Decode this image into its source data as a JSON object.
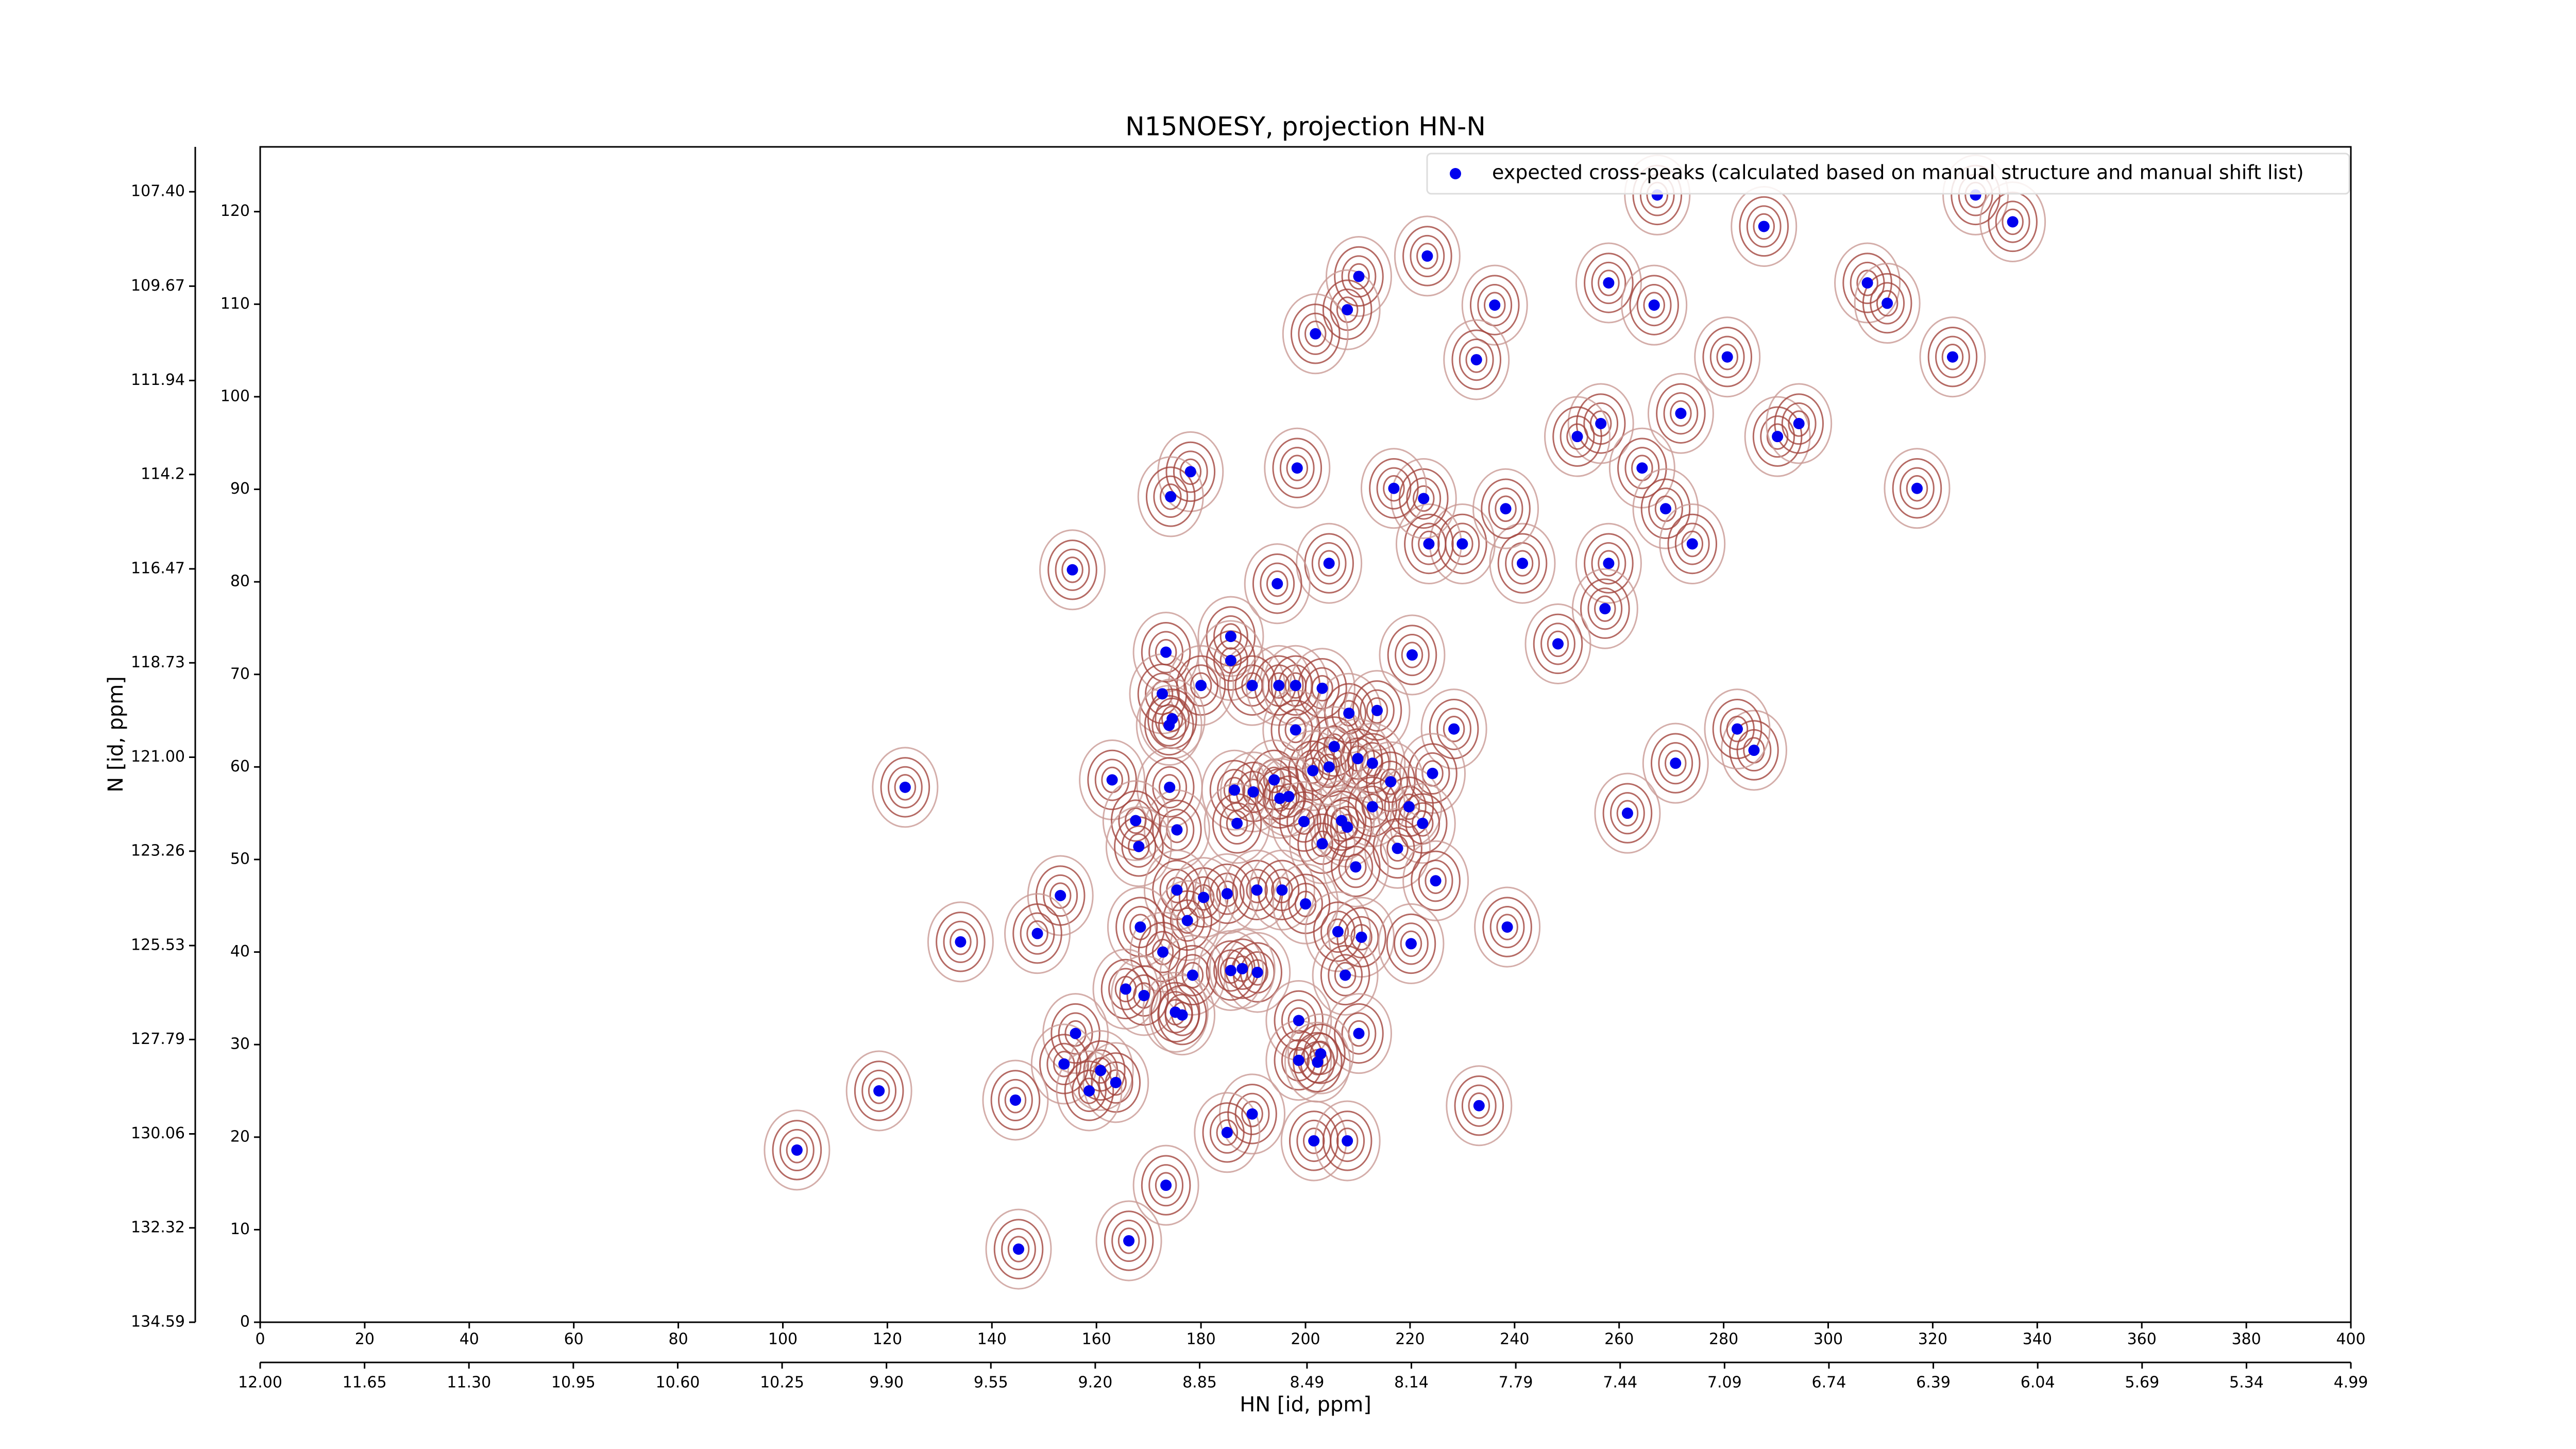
{
  "chart_data": {
    "type": "scatter",
    "title": "N15NOESY, projection HN-N",
    "x_label": "HN [id, ppm]",
    "y_label": "N [id, ppm]",
    "legend": "upper right",
    "xlim": [
      0,
      400
    ],
    "xticks": [
      0,
      20,
      40,
      60,
      80,
      100,
      120,
      140,
      160,
      180,
      200,
      220,
      240,
      260,
      280,
      300,
      320,
      340,
      360,
      380,
      400
    ],
    "x2lim": [
      12.0,
      4.99
    ],
    "x2ticks": [
      {
        "value": 12.0,
        "label": "12.00"
      },
      11.65,
      {
        "value": 11.3,
        "label": "11.30"
      },
      10.95,
      {
        "value": 10.6,
        "label": "10.60"
      },
      10.25,
      {
        "value": 9.9,
        "label": "9.90"
      },
      9.55,
      {
        "value": 9.2,
        "label": "9.20"
      },
      8.85,
      8.49,
      8.14,
      7.79,
      7.44,
      7.09,
      6.74,
      6.39,
      6.04,
      5.69,
      5.34,
      4.99
    ],
    "ylim": [
      0,
      127
    ],
    "yticks": [
      0,
      10,
      20,
      30,
      40,
      50,
      60,
      70,
      80,
      90,
      100,
      110,
      120
    ],
    "y2lim": [
      134.59,
      106.32
    ],
    "y2ticks": [
      134.59,
      132.32,
      130.06,
      127.79,
      125.53,
      123.26,
      {
        "value": 121.0,
        "label": "121.00"
      },
      118.73,
      116.47,
      114.2,
      111.94,
      109.67,
      {
        "value": 107.4,
        "label": "107.40"
      }
    ],
    "series": [
      {
        "name": "expected cross-peaks (calculated based on manual structure and manual shift list)",
        "color": "#0000ee",
        "x": [
          210.2,
          223.3,
          208,
          201.9,
          236.2,
          232.7,
          258,
          266.7,
          267.3,
          287.7,
          328.2,
          335.3,
          307.5,
          311.3,
          323.8,
          280.7,
          271.8,
          256.5,
          252,
          290.3,
          294.4,
          317,
          264.4,
          268.9,
          274,
          258,
          241.5,
          230,
          223.6,
          238.3,
          222.6,
          216.9,
          198.4,
          178,
          174.2,
          204.5,
          194.6,
          155.4,
          257.3,
          248.3,
          220.4,
          185.7,
          173.3,
          185.7,
          172.6,
          180,
          189.8,
          194.9,
          198.1,
          203.2,
          208.3,
          213.7,
          174.5,
          173.9,
          198.1,
          228.4,
          205.5,
          212.8,
          210,
          204.5,
          201.4,
          224.3,
          270.8,
          285.8,
          282.6,
          216.3,
          194,
          190,
          186.4,
          195.1,
          174,
          163,
          123.4,
          196.8,
          219.8,
          222.4,
          212.8,
          206.9,
          208,
          199.7,
          186.9,
          175.4,
          167.5,
          168.1,
          203.2,
          217.6,
          209.6,
          261.6,
          224.9,
          175.4,
          180.5,
          185,
          190.7,
          195.5,
          200,
          153.1,
          177.4,
          168.4,
          206.2,
          210.7,
          220.2,
          172.7,
          148.7,
          134,
          238.6,
          178.4,
          190.8,
          185.7,
          187.9,
          207.6,
          165.6,
          169.1,
          175.1,
          176.4,
          198.7,
          156,
          210.2,
          198.7,
          202.9,
          202.3,
          153.8,
          160.8,
          163.7,
          158.6,
          118.4,
          144.5,
          233.2,
          189.8,
          185,
          201.6,
          208,
          102.7,
          173.3,
          166.2,
          145.1
        ],
        "values": [
          113,
          115.2,
          109.4,
          106.8,
          109.9,
          104,
          112.3,
          109.9,
          121.8,
          118.4,
          121.8,
          118.9,
          112.3,
          110.1,
          104.3,
          104.3,
          98.2,
          97.1,
          95.7,
          95.7,
          97.1,
          90.1,
          92.3,
          87.9,
          84.1,
          82,
          82,
          84.1,
          84.1,
          87.9,
          89,
          90.1,
          92.3,
          91.9,
          89.2,
          82,
          79.8,
          81.3,
          77.1,
          73.3,
          72.1,
          74.1,
          72.4,
          71.5,
          67.9,
          68.8,
          68.8,
          68.8,
          68.8,
          68.5,
          65.8,
          66.1,
          65.2,
          64.5,
          64,
          64.1,
          62.2,
          60.4,
          60.9,
          60,
          59.6,
          59.3,
          60.4,
          61.8,
          64.1,
          58.4,
          58.6,
          57.3,
          57.5,
          56.6,
          57.8,
          58.6,
          57.8,
          56.8,
          55.7,
          53.9,
          55.7,
          54.2,
          53.5,
          54.1,
          53.9,
          53.2,
          54.2,
          51.4,
          51.7,
          51.2,
          49.2,
          55,
          47.7,
          46.7,
          45.9,
          46.3,
          46.7,
          46.7,
          45.2,
          46.1,
          43.4,
          42.7,
          42.2,
          41.6,
          40.9,
          40,
          42,
          41.1,
          42.7,
          37.5,
          37.8,
          38,
          38.2,
          37.5,
          36,
          35.3,
          33.5,
          33.2,
          32.6,
          31.2,
          31.2,
          28.3,
          29,
          28.1,
          27.9,
          27.2,
          25.9,
          25,
          25,
          24,
          23.4,
          22.5,
          20.5,
          19.6,
          19.6,
          18.6,
          14.8,
          8.8,
          7.9
        ]
      }
    ]
  }
}
